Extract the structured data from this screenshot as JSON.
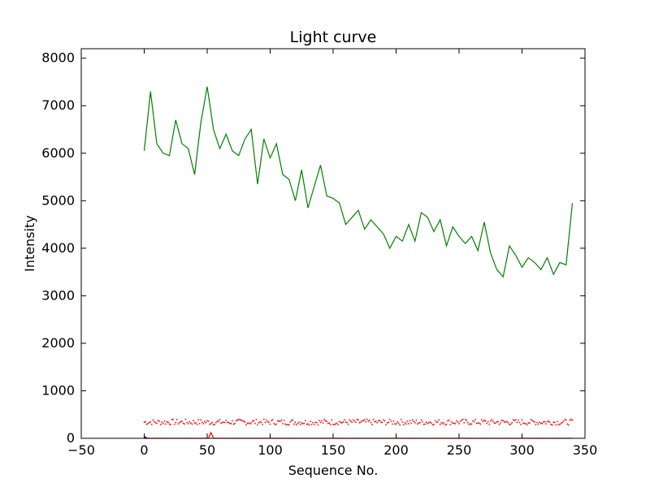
{
  "chart_data": {
    "type": "line",
    "title": "Light curve",
    "xlabel": "Sequence No.",
    "ylabel": "Intensity",
    "xlim": [
      -50,
      350
    ],
    "ylim": [
      0,
      8200
    ],
    "x_ticks": [
      -50,
      0,
      50,
      100,
      150,
      200,
      250,
      300,
      350
    ],
    "y_ticks": [
      0,
      1000,
      2000,
      3000,
      4000,
      5000,
      6000,
      7000,
      8000
    ],
    "grid": false,
    "series": [
      {
        "color": "#008000",
        "style": "solid",
        "x_start": 0,
        "x_step": 5,
        "values": [
          6050,
          7300,
          6200,
          6000,
          5950,
          6700,
          6200,
          6100,
          5550,
          6650,
          7400,
          6500,
          6100,
          6400,
          6050,
          5950,
          6300,
          6500,
          5350,
          6300,
          5900,
          6200,
          5550,
          5450,
          5000,
          5650,
          4850,
          5300,
          5750,
          5100,
          5050,
          4950,
          4500,
          4650,
          4800,
          4400,
          4600,
          4450,
          4300,
          4000,
          4250,
          4150,
          4500,
          4150,
          4750,
          4650,
          4350,
          4600,
          4050,
          4450,
          4250,
          4100,
          4250,
          3950,
          4550,
          3900,
          3550,
          3400,
          4050,
          3850,
          3600,
          3800,
          3700,
          3550,
          3800,
          3450,
          3700,
          3650,
          4950
        ]
      },
      {
        "color": "#ff0000",
        "style": "dotted",
        "x_start": 0,
        "x_step": 1,
        "seed_mean": 340,
        "seed_spread": 60
      },
      {
        "color": "#ff0000",
        "style": "solid",
        "x": [
          0,
          51,
          53,
          55,
          340
        ],
        "values": [
          0,
          0,
          120,
          0,
          0
        ]
      },
      {
        "color": "#0000ff",
        "style": "solid",
        "x": [
          0,
          1,
          2,
          3
        ],
        "values": [
          0,
          30,
          0,
          0
        ]
      }
    ]
  }
}
